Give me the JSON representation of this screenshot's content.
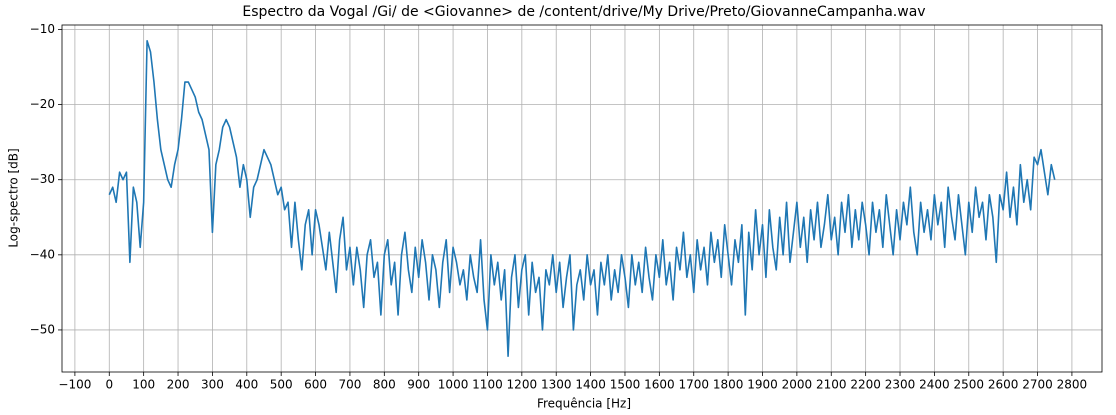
{
  "chart_data": {
    "type": "line",
    "title": "Espectro da Vogal /Gi/ de <Giovanne> de /content/drive/My Drive/Preto/GiovanneCampanha.wav",
    "x_label": "Frequência [Hz]",
    "y_label": "Log-spectro [dB]",
    "x": [
      0,
      10,
      20,
      30,
      40,
      50,
      60,
      70,
      80,
      90,
      100,
      110,
      120,
      130,
      140,
      150,
      160,
      170,
      180,
      190,
      200,
      210,
      220,
      230,
      240,
      250,
      260,
      270,
      280,
      290,
      300,
      310,
      320,
      330,
      340,
      350,
      360,
      370,
      380,
      390,
      400,
      410,
      420,
      430,
      440,
      450,
      460,
      470,
      480,
      490,
      500,
      510,
      520,
      530,
      540,
      550,
      560,
      570,
      580,
      590,
      600,
      610,
      620,
      630,
      640,
      650,
      660,
      670,
      680,
      690,
      700,
      710,
      720,
      730,
      740,
      750,
      760,
      770,
      780,
      790,
      800,
      810,
      820,
      830,
      840,
      850,
      860,
      870,
      880,
      890,
      900,
      910,
      920,
      930,
      940,
      950,
      960,
      970,
      980,
      990,
      1000,
      1010,
      1020,
      1030,
      1040,
      1050,
      1060,
      1070,
      1080,
      1090,
      1100,
      1110,
      1120,
      1130,
      1140,
      1150,
      1160,
      1170,
      1180,
      1190,
      1200,
      1210,
      1220,
      1230,
      1240,
      1250,
      1260,
      1270,
      1280,
      1290,
      1300,
      1310,
      1320,
      1330,
      1340,
      1350,
      1360,
      1370,
      1380,
      1390,
      1400,
      1410,
      1420,
      1430,
      1440,
      1450,
      1460,
      1470,
      1480,
      1490,
      1500,
      1510,
      1520,
      1530,
      1540,
      1550,
      1560,
      1570,
      1580,
      1590,
      1600,
      1610,
      1620,
      1630,
      1640,
      1650,
      1660,
      1670,
      1680,
      1690,
      1700,
      1710,
      1720,
      1730,
      1740,
      1750,
      1760,
      1770,
      1780,
      1790,
      1800,
      1810,
      1820,
      1830,
      1840,
      1850,
      1860,
      1870,
      1880,
      1890,
      1900,
      1910,
      1920,
      1930,
      1940,
      1950,
      1960,
      1970,
      1980,
      1990,
      2000,
      2010,
      2020,
      2030,
      2040,
      2050,
      2060,
      2070,
      2080,
      2090,
      2100,
      2110,
      2120,
      2130,
      2140,
      2150,
      2160,
      2170,
      2180,
      2190,
      2200,
      2210,
      2220,
      2230,
      2240,
      2250,
      2260,
      2270,
      2280,
      2290,
      2300,
      2310,
      2320,
      2330,
      2340,
      2350,
      2360,
      2370,
      2380,
      2390,
      2400,
      2410,
      2420,
      2430,
      2440,
      2450,
      2460,
      2470,
      2480,
      2490,
      2500,
      2510,
      2520,
      2530,
      2540,
      2550,
      2560,
      2570,
      2580,
      2590,
      2600,
      2610,
      2620,
      2630,
      2640,
      2650,
      2660,
      2670,
      2680,
      2690,
      2700,
      2710,
      2720,
      2730,
      2740,
      2750
    ],
    "series": [
      {
        "color": "#1f77b4",
        "values": [
          -32,
          -31,
          -33,
          -29,
          -30,
          -29,
          -41,
          -31,
          -33,
          -39,
          -33,
          -11.5,
          -13,
          -17,
          -22,
          -26,
          -28,
          -30,
          -31,
          -28,
          -26,
          -22,
          -17,
          -17,
          -18,
          -19,
          -21,
          -22,
          -24,
          -26,
          -37,
          -28,
          -26,
          -23,
          -22,
          -23,
          -25,
          -27,
          -31,
          -28,
          -30,
          -35,
          -31,
          -30,
          -28,
          -26,
          -27,
          -28,
          -30,
          -32,
          -31,
          -34,
          -33,
          -39,
          -33,
          -38,
          -42,
          -36,
          -34,
          -40,
          -34,
          -36,
          -39,
          -42,
          -37,
          -41,
          -45,
          -38,
          -35,
          -42,
          -39,
          -44,
          -39,
          -42,
          -47,
          -40,
          -38,
          -43,
          -41,
          -48,
          -40,
          -38,
          -44,
          -41,
          -48,
          -40,
          -37,
          -42,
          -45,
          -39,
          -43,
          -38,
          -41,
          -46,
          -40,
          -42,
          -47,
          -41,
          -38,
          -45,
          -39,
          -41,
          -44,
          -42,
          -46,
          -40,
          -43,
          -45,
          -38,
          -46,
          -50,
          -40,
          -44,
          -41,
          -46,
          -42,
          -53.5,
          -43,
          -40,
          -47,
          -42,
          -40,
          -48,
          -41,
          -45,
          -43,
          -50,
          -42,
          -44,
          -40,
          -45,
          -41,
          -47,
          -43,
          -40,
          -50,
          -44,
          -42,
          -46,
          -40,
          -44,
          -42,
          -48,
          -41,
          -44,
          -40,
          -46,
          -42,
          -45,
          -40,
          -43,
          -47,
          -40,
          -44,
          -41,
          -45,
          -39,
          -43,
          -46,
          -40,
          -43,
          -38,
          -44,
          -41,
          -46,
          -39,
          -42,
          -37,
          -43,
          -40,
          -45,
          -38,
          -42,
          -39,
          -44,
          -37,
          -41,
          -38,
          -43,
          -36,
          -40,
          -44,
          -38,
          -41,
          -36,
          -48,
          -37,
          -42,
          -34,
          -40,
          -36,
          -43,
          -34,
          -39,
          -42,
          -35,
          -40,
          -33,
          -41,
          -37,
          -33,
          -39,
          -35,
          -41,
          -34,
          -38,
          -33,
          -39,
          -36,
          -32,
          -38,
          -35,
          -40,
          -33,
          -37,
          -32,
          -39,
          -34,
          -38,
          -33,
          -36,
          -40,
          -33,
          -37,
          -34,
          -39,
          -32,
          -36,
          -40,
          -34,
          -38,
          -33,
          -36,
          -31,
          -37,
          -40,
          -33,
          -37,
          -34,
          -38,
          -32,
          -36,
          -33,
          -39,
          -31,
          -35,
          -38,
          -32,
          -36,
          -40,
          -33,
          -37,
          -31,
          -35,
          -33,
          -38,
          -32,
          -35,
          -41,
          -32,
          -34,
          -29,
          -35,
          -31,
          -36,
          -28,
          -33,
          -30,
          -34,
          -27,
          -28,
          -26,
          -29,
          -32,
          -28,
          -30
        ]
      }
    ],
    "xlim": [
      -137.5,
      2887.5
    ],
    "ylim": [
      -55.6,
      -9.4
    ],
    "xticks": [
      {
        "value": -100,
        "label": "−100"
      },
      0,
      100,
      200,
      300,
      400,
      500,
      600,
      700,
      800,
      900,
      1000,
      1100,
      1200,
      1300,
      1400,
      1500,
      1600,
      1700,
      1800,
      1900,
      2000,
      2100,
      2200,
      2300,
      2400,
      2500,
      2600,
      2700,
      2800
    ],
    "yticks": [
      {
        "value": -10,
        "label": "−10"
      },
      {
        "value": -20,
        "label": "−20"
      },
      {
        "value": -30,
        "label": "−30"
      },
      {
        "value": -40,
        "label": "−40"
      },
      {
        "value": -50,
        "label": "−50"
      }
    ],
    "grid": true
  }
}
